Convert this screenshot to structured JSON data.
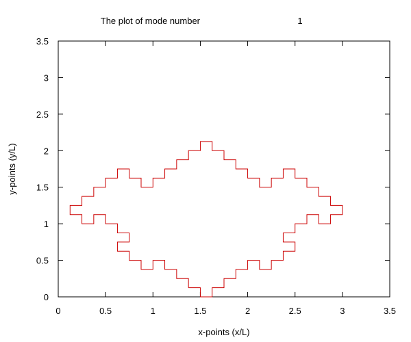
{
  "chart_data": {
    "type": "line",
    "title_text": "The plot of mode number",
    "title_mode_number": "1",
    "xlabel": "x-points (x/L)",
    "ylabel": "y-points (y/L)",
    "xlim": [
      0,
      3.5
    ],
    "ylim": [
      0,
      3.5
    ],
    "xticks": [
      0,
      0.5,
      1,
      1.5,
      2,
      2.5,
      3,
      3.5
    ],
    "xtick_labels": [
      "0",
      "0.5",
      "1",
      "1.5",
      "2",
      "2.5",
      "3",
      "3.5"
    ],
    "yticks": [
      0,
      0.5,
      1,
      1.5,
      2,
      2.5,
      3,
      3.5
    ],
    "ytick_labels": [
      "0",
      "0.5",
      "1",
      "1.5",
      "2",
      "2.5",
      "3",
      "3.5"
    ],
    "grid": false,
    "legend": "none",
    "series": [
      {
        "color": "#cc0000",
        "points": [
          [
            1.375,
            0.125
          ],
          [
            1.375,
            0.25
          ],
          [
            1.25,
            0.25
          ],
          [
            1.25,
            0.375
          ],
          [
            1.125,
            0.375
          ],
          [
            1.125,
            0.5
          ],
          [
            1.0,
            0.5
          ],
          [
            1.0,
            0.375
          ],
          [
            0.875,
            0.375
          ],
          [
            0.875,
            0.5
          ],
          [
            0.75,
            0.5
          ],
          [
            0.75,
            0.625
          ],
          [
            0.625,
            0.625
          ],
          [
            0.625,
            0.75
          ],
          [
            0.75,
            0.75
          ],
          [
            0.75,
            0.875
          ],
          [
            0.625,
            0.875
          ],
          [
            0.625,
            1.0
          ],
          [
            0.5,
            1.0
          ],
          [
            0.5,
            1.125
          ],
          [
            0.375,
            1.125
          ],
          [
            0.375,
            1.0
          ],
          [
            0.25,
            1.0
          ],
          [
            0.25,
            1.125
          ],
          [
            0.125,
            1.125
          ],
          [
            0.125,
            1.25
          ],
          [
            0.25,
            1.25
          ],
          [
            0.25,
            1.375
          ],
          [
            0.375,
            1.375
          ],
          [
            0.375,
            1.5
          ],
          [
            0.5,
            1.5
          ],
          [
            0.5,
            1.625
          ],
          [
            0.625,
            1.625
          ],
          [
            0.625,
            1.75
          ],
          [
            0.75,
            1.75
          ],
          [
            0.75,
            1.625
          ],
          [
            0.875,
            1.625
          ],
          [
            0.875,
            1.5
          ],
          [
            1.0,
            1.5
          ],
          [
            1.0,
            1.625
          ],
          [
            1.125,
            1.625
          ],
          [
            1.125,
            1.75
          ],
          [
            1.25,
            1.75
          ],
          [
            1.25,
            1.875
          ],
          [
            1.375,
            1.875
          ],
          [
            1.375,
            2.0
          ],
          [
            1.5,
            2.0
          ],
          [
            1.5,
            2.125
          ],
          [
            1.625,
            2.125
          ],
          [
            1.625,
            2.0
          ],
          [
            1.75,
            2.0
          ],
          [
            1.75,
            1.875
          ],
          [
            1.875,
            1.875
          ],
          [
            1.875,
            1.75
          ],
          [
            2.0,
            1.75
          ],
          [
            2.0,
            1.625
          ],
          [
            2.125,
            1.625
          ],
          [
            2.125,
            1.5
          ],
          [
            2.25,
            1.5
          ],
          [
            2.25,
            1.625
          ],
          [
            2.375,
            1.625
          ],
          [
            2.375,
            1.75
          ],
          [
            2.5,
            1.75
          ],
          [
            2.5,
            1.625
          ],
          [
            2.625,
            1.625
          ],
          [
            2.625,
            1.5
          ],
          [
            2.75,
            1.5
          ],
          [
            2.75,
            1.375
          ],
          [
            2.875,
            1.375
          ],
          [
            2.875,
            1.25
          ],
          [
            3.0,
            1.25
          ],
          [
            3.0,
            1.125
          ],
          [
            2.875,
            1.125
          ],
          [
            2.875,
            1.0
          ],
          [
            2.75,
            1.0
          ],
          [
            2.75,
            1.125
          ],
          [
            2.625,
            1.125
          ],
          [
            2.625,
            1.0
          ],
          [
            2.5,
            1.0
          ],
          [
            2.5,
            0.875
          ],
          [
            2.375,
            0.875
          ],
          [
            2.375,
            0.75
          ],
          [
            2.5,
            0.75
          ],
          [
            2.5,
            0.625
          ],
          [
            2.375,
            0.625
          ],
          [
            2.375,
            0.5
          ],
          [
            2.25,
            0.5
          ],
          [
            2.25,
            0.375
          ],
          [
            2.125,
            0.375
          ],
          [
            2.125,
            0.5
          ],
          [
            2.0,
            0.5
          ],
          [
            2.0,
            0.375
          ],
          [
            1.875,
            0.375
          ],
          [
            1.875,
            0.25
          ],
          [
            1.75,
            0.25
          ],
          [
            1.75,
            0.125
          ],
          [
            1.625,
            0.125
          ],
          [
            1.625,
            0.0
          ],
          [
            1.5,
            0.0
          ],
          [
            1.5,
            0.125
          ],
          [
            1.375,
            0.125
          ]
        ]
      }
    ]
  }
}
